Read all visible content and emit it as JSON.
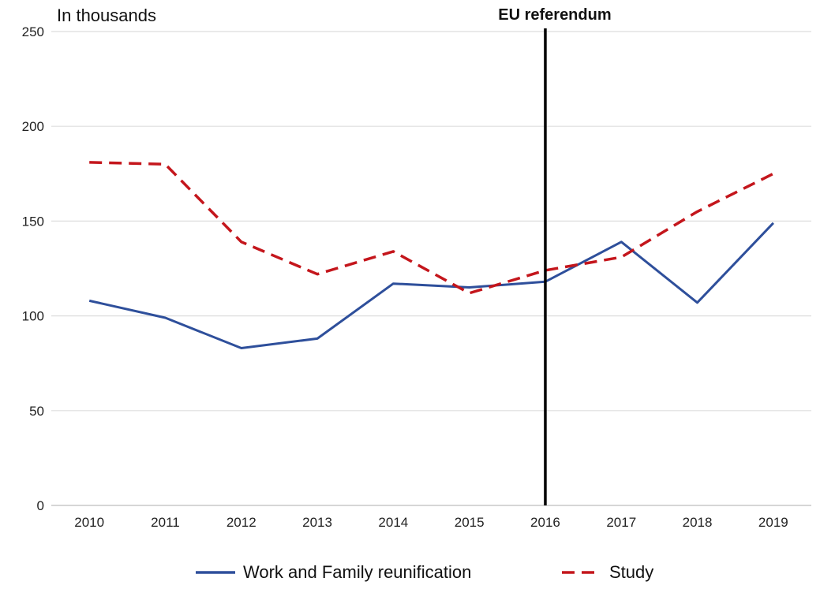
{
  "chart_data": {
    "type": "line",
    "unit_label": "In thousands",
    "x": [
      "2010",
      "2011",
      "2012",
      "2013",
      "2014",
      "2015",
      "2016",
      "2017",
      "2018",
      "2019"
    ],
    "series": [
      {
        "name": "Work and Family reunification",
        "color": "#2e4f9b",
        "style": "solid",
        "values": [
          108,
          99,
          83,
          88,
          117,
          115,
          118,
          139,
          107,
          149
        ]
      },
      {
        "name": "Study",
        "color": "#c4161c",
        "style": "dashed",
        "values": [
          181,
          180,
          139,
          122,
          134,
          112,
          124,
          131,
          155,
          175
        ]
      }
    ],
    "ylim": [
      0,
      250
    ],
    "yticks": [
      0,
      50,
      100,
      150,
      200,
      250
    ],
    "grid": true,
    "legend": "bottom",
    "annotations": [
      {
        "type": "vline",
        "x": "2016",
        "label": "EU referendum",
        "color": "#000000"
      }
    ]
  }
}
